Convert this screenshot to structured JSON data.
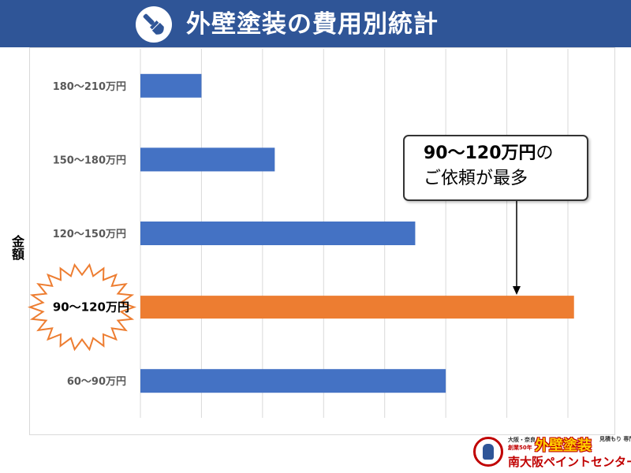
{
  "header": {
    "title": "外壁塗装の費用別統計",
    "icon": "paint-brush-icon",
    "background": "#2f5597"
  },
  "chart_data": {
    "type": "bar",
    "orientation": "horizontal",
    "title": "外壁塗装の費用別統計",
    "ylabel": "金額",
    "xlabel": "",
    "categories": [
      "60〜90万円",
      "90〜120万円",
      "120〜150万円",
      "150〜180万円",
      "180〜210万円"
    ],
    "values": [
      5,
      7.1,
      4.5,
      2.2,
      1
    ],
    "highlight_index": 1,
    "bar_color": "#4472c4",
    "highlight_color": "#ed7d31",
    "xlim": [
      0,
      7
    ],
    "grid": true,
    "legend": "none"
  },
  "callout": {
    "line1_strong": "90〜120万円",
    "line1_rest": "の",
    "line2": "ご依頼が最多"
  },
  "logo": {
    "small_top": "大阪・奈良",
    "small_sub": "創業50年",
    "main": "外壁塗装",
    "side": "見積もり 専門店",
    "bottom": "南大阪ペイントセンター"
  }
}
